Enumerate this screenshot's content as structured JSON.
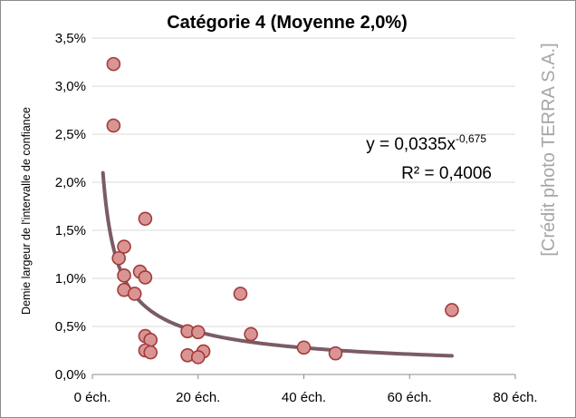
{
  "chart_data": {
    "type": "scatter",
    "title": "Catégorie 4 (Moyenne 2,0%)",
    "ylabel": "Demie largeur de l'intervalle de confiance",
    "xlabel": "",
    "xlim": [
      0,
      80
    ],
    "ylim": [
      0,
      3.5
    ],
    "x_ticks": [
      0,
      20,
      40,
      60,
      80
    ],
    "x_tick_labels": [
      "0 éch.",
      "20 éch.",
      "40 éch.",
      "60 éch.",
      "80 éch."
    ],
    "y_ticks": [
      0,
      0.5,
      1.0,
      1.5,
      2.0,
      2.5,
      3.0,
      3.5
    ],
    "y_tick_labels": [
      "0,0%",
      "0,5%",
      "1,0%",
      "1,5%",
      "2,0%",
      "2,5%",
      "3,0%",
      "3,5%"
    ],
    "grid": "horizontal",
    "points": [
      {
        "x": 4,
        "y": 3.23
      },
      {
        "x": 4,
        "y": 2.59
      },
      {
        "x": 10,
        "y": 1.62
      },
      {
        "x": 6,
        "y": 1.33
      },
      {
        "x": 5,
        "y": 1.21
      },
      {
        "x": 9,
        "y": 1.07
      },
      {
        "x": 6,
        "y": 1.03
      },
      {
        "x": 10,
        "y": 1.01
      },
      {
        "x": 6,
        "y": 0.88
      },
      {
        "x": 8,
        "y": 0.84
      },
      {
        "x": 28,
        "y": 0.84
      },
      {
        "x": 68,
        "y": 0.67
      },
      {
        "x": 18,
        "y": 0.45
      },
      {
        "x": 20,
        "y": 0.44
      },
      {
        "x": 30,
        "y": 0.42
      },
      {
        "x": 10,
        "y": 0.4
      },
      {
        "x": 11,
        "y": 0.36
      },
      {
        "x": 40,
        "y": 0.28
      },
      {
        "x": 10,
        "y": 0.25
      },
      {
        "x": 11,
        "y": 0.23
      },
      {
        "x": 21,
        "y": 0.24
      },
      {
        "x": 46,
        "y": 0.22
      },
      {
        "x": 18,
        "y": 0.2
      },
      {
        "x": 20,
        "y": 0.18
      }
    ],
    "trendline": {
      "type": "power",
      "coefficient": 0.0335,
      "exponent": -0.675,
      "x_range": [
        2,
        68
      ]
    },
    "equation_base": "y = 0,0335x",
    "equation_exponent": "-0,675",
    "r2_label": "R² = 0,4006",
    "colors": {
      "marker_fill": "#d99594",
      "marker_stroke": "#a33b3a",
      "trendline": "#7a5c66",
      "grid": "#d9d9d9",
      "axis": "#8c8c8c"
    }
  },
  "credit": "[Crédit photo TERRA S.A.]"
}
